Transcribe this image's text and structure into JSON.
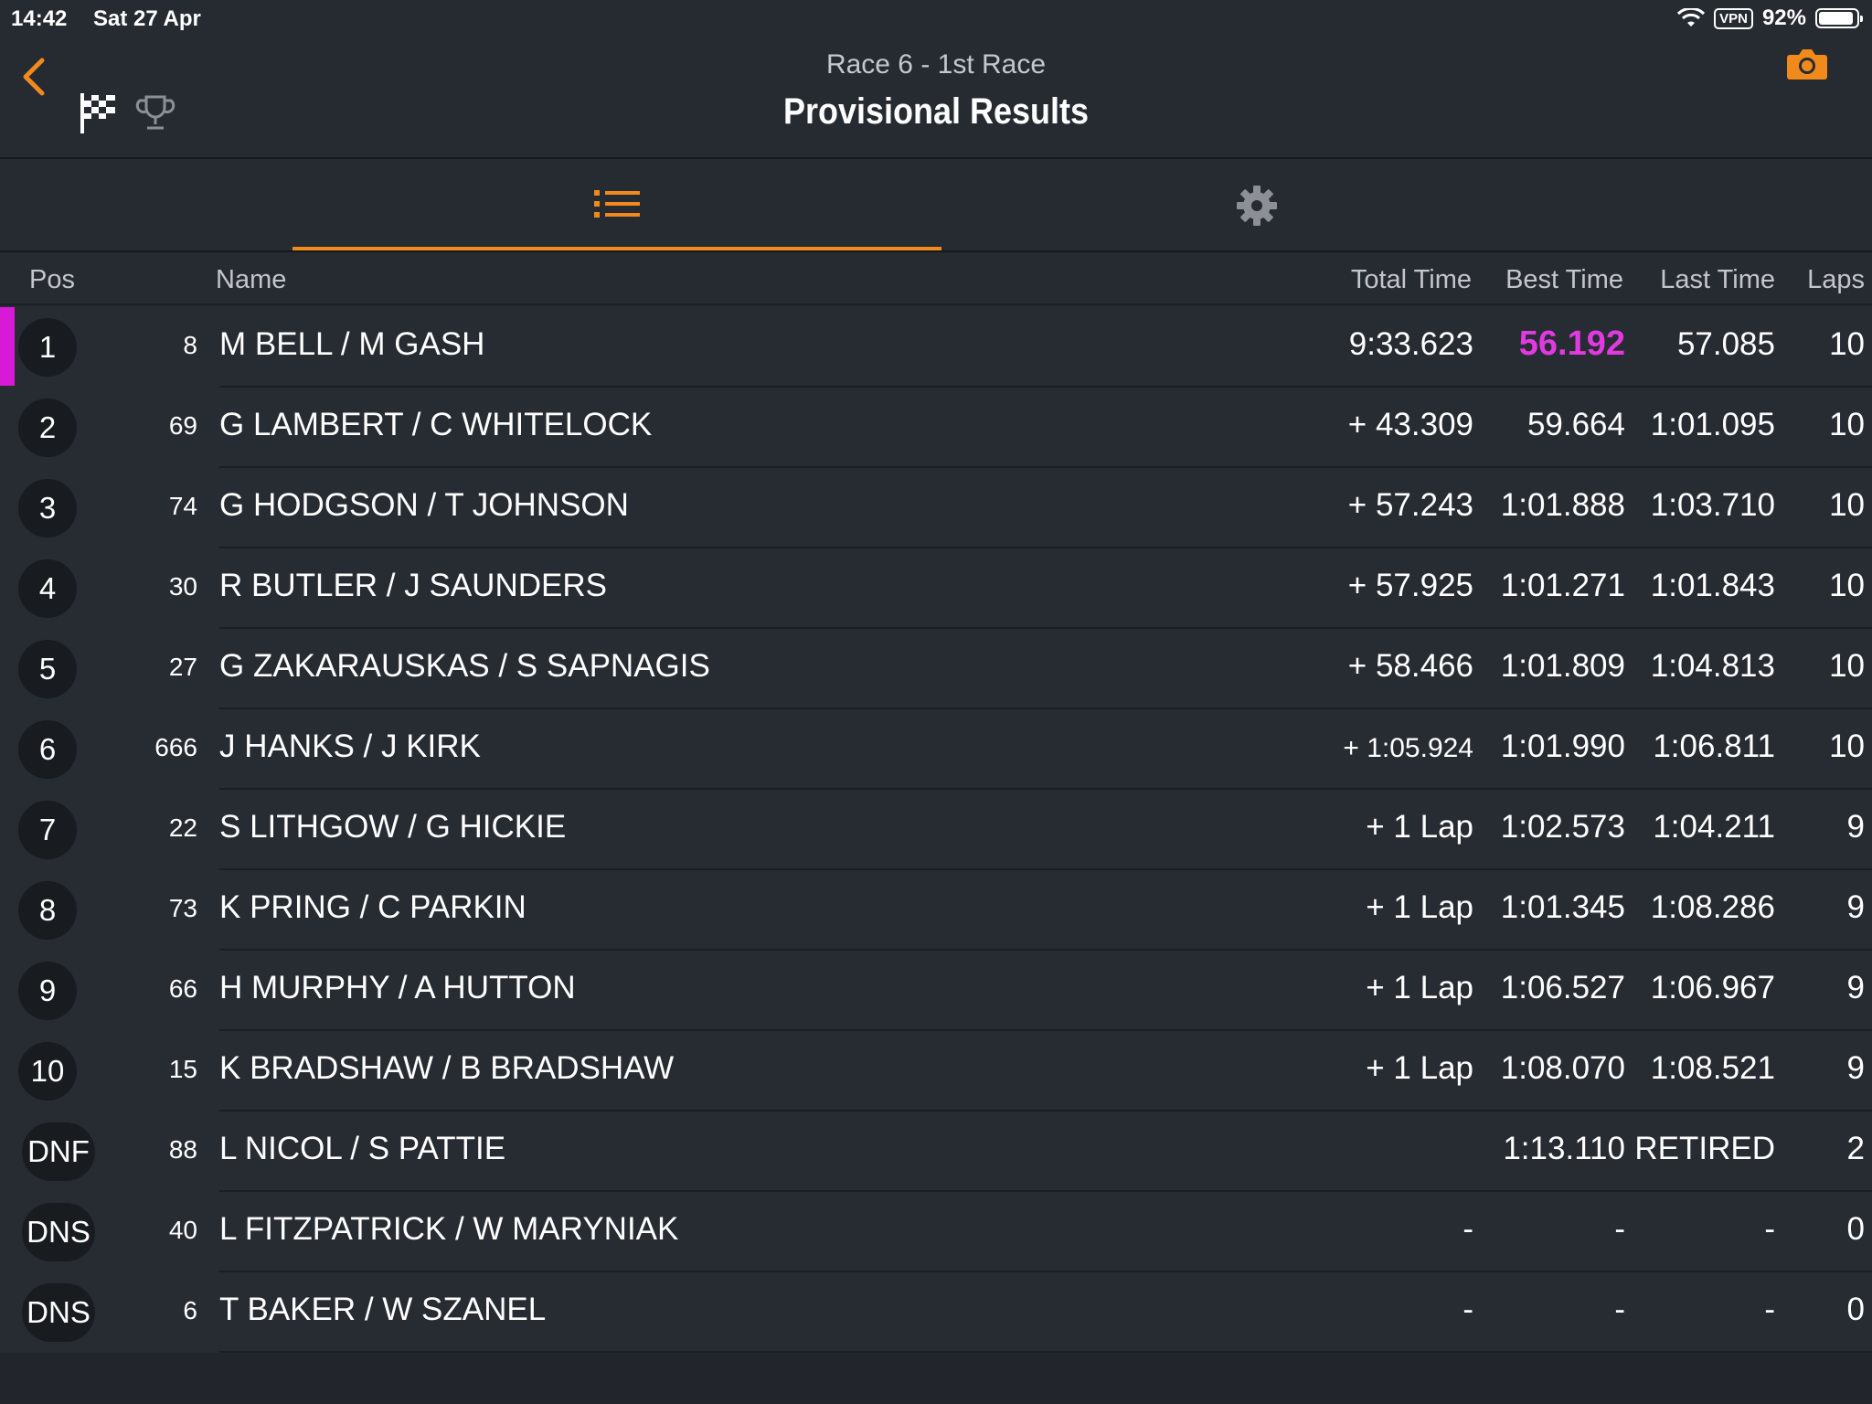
{
  "status_bar": {
    "time": "14:42",
    "date": "Sat 27 Apr",
    "vpn": "VPN",
    "battery": "92%",
    "battery_level": 0.92
  },
  "header": {
    "subtitle": "Race 6 - 1st Race",
    "title": "Provisional Results",
    "accent_color": "#f08a1c"
  },
  "table": {
    "headers": {
      "pos": "Pos",
      "name": "Name",
      "total": "Total Time",
      "best": "Best Time",
      "last": "Last Time",
      "laps": "Laps"
    },
    "rows": [
      {
        "pos": "1",
        "num": "8",
        "name": "M BELL / M GASH",
        "total": "9:33.623",
        "best": "56.192",
        "last": "57.085",
        "laps": "10"
      },
      {
        "pos": "2",
        "num": "69",
        "name": "G LAMBERT / C WHITELOCK",
        "total": "+ 43.309",
        "best": "59.664",
        "last": "1:01.095",
        "laps": "10"
      },
      {
        "pos": "3",
        "num": "74",
        "name": "G HODGSON / T JOHNSON",
        "total": "+ 57.243",
        "best": "1:01.888",
        "last": "1:03.710",
        "laps": "10"
      },
      {
        "pos": "4",
        "num": "30",
        "name": "R BUTLER / J SAUNDERS",
        "total": "+ 57.925",
        "best": "1:01.271",
        "last": "1:01.843",
        "laps": "10"
      },
      {
        "pos": "5",
        "num": "27",
        "name": "G ZAKARAUSKAS / S SAPNAGIS",
        "total": "+ 58.466",
        "best": "1:01.809",
        "last": "1:04.813",
        "laps": "10"
      },
      {
        "pos": "6",
        "num": "666",
        "name": "J HANKS / J KIRK",
        "total": "+ 1:05.924",
        "best": "1:01.990",
        "last": "1:06.811",
        "laps": "10"
      },
      {
        "pos": "7",
        "num": "22",
        "name": "S LITHGOW / G HICKIE",
        "total": "+ 1 Lap",
        "best": "1:02.573",
        "last": "1:04.211",
        "laps": "9"
      },
      {
        "pos": "8",
        "num": "73",
        "name": "K PRING / C PARKIN",
        "total": "+ 1 Lap",
        "best": "1:01.345",
        "last": "1:08.286",
        "laps": "9"
      },
      {
        "pos": "9",
        "num": "66",
        "name": "H MURPHY / A HUTTON",
        "total": "+ 1 Lap",
        "best": "1:06.527",
        "last": "1:06.967",
        "laps": "9"
      },
      {
        "pos": "10",
        "num": "15",
        "name": "K BRADSHAW / B BRADSHAW",
        "total": "+ 1 Lap",
        "best": "1:08.070",
        "last": "1:08.521",
        "laps": "9"
      },
      {
        "pos": "DNF",
        "num": "88",
        "name": "L NICOL / S PATTIE",
        "total": "",
        "best": "1:13.110",
        "last": "RETIRED",
        "laps": "2"
      },
      {
        "pos": "DNS",
        "num": "40",
        "name": "L FITZPATRICK / W MARYNIAK",
        "total": "-",
        "best": "-",
        "last": "-",
        "laps": "0"
      },
      {
        "pos": "DNS",
        "num": "6",
        "name": "T BAKER / W SZANEL",
        "total": "-",
        "best": "-",
        "last": "-",
        "laps": "0"
      }
    ]
  }
}
